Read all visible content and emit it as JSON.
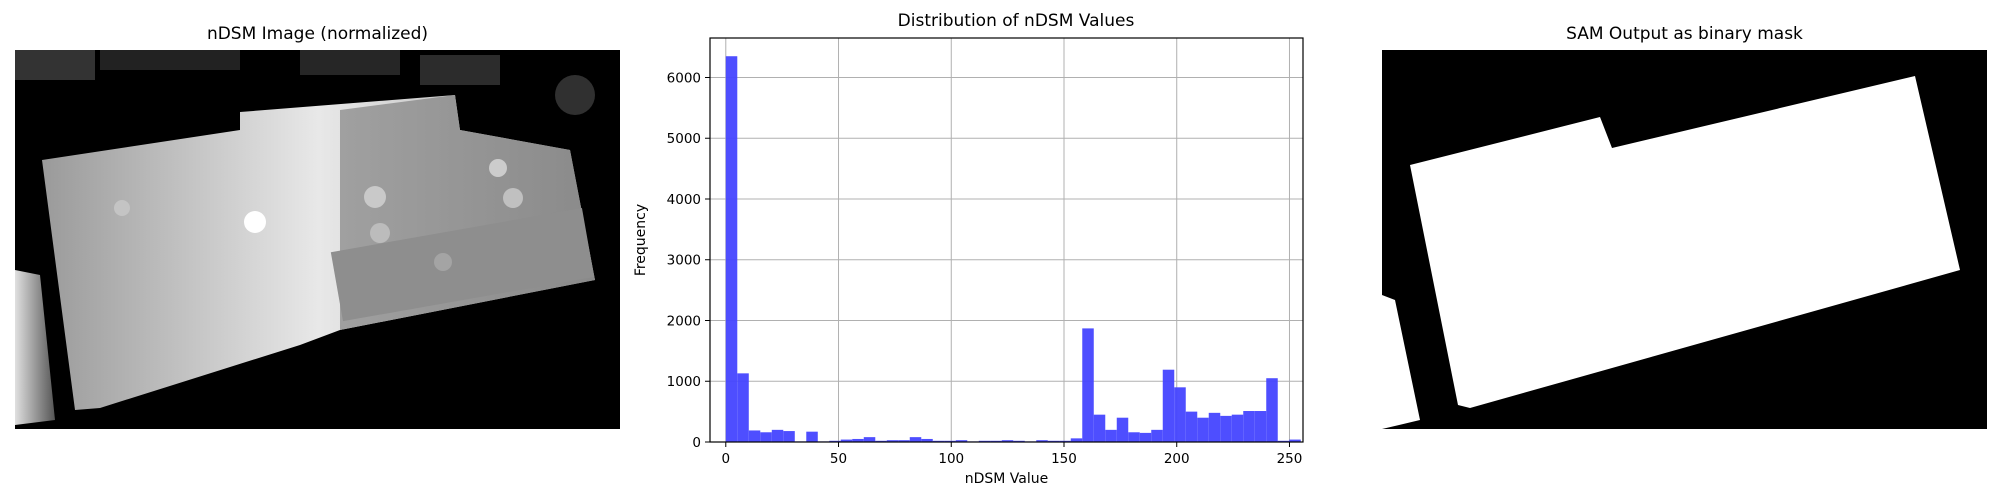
{
  "panels": {
    "left_title": "nDSM Image (normalized)",
    "right_title": "SAM Output as binary mask"
  },
  "chart_data": {
    "type": "bar",
    "title": "Distribution of nDSM Values",
    "xlabel": "nDSM Value",
    "ylabel": "Frequency",
    "xlim": [
      -7,
      256
    ],
    "ylim": [
      0,
      6650
    ],
    "xticks": [
      0,
      50,
      100,
      150,
      200,
      250
    ],
    "yticks": [
      0,
      1000,
      2000,
      3000,
      4000,
      5000,
      6000
    ],
    "grid": true,
    "bar_color": "#4444ff",
    "bin_width": 5.1,
    "bin_edges_start": 0,
    "values": [
      6350,
      1130,
      190,
      160,
      200,
      180,
      10,
      170,
      10,
      20,
      40,
      50,
      80,
      20,
      30,
      30,
      80,
      50,
      20,
      20,
      30,
      10,
      20,
      20,
      30,
      20,
      10,
      30,
      20,
      20,
      60,
      1870,
      450,
      200,
      400,
      160,
      150,
      200,
      1190,
      900,
      500,
      400,
      480,
      430,
      450,
      510,
      510,
      1050,
      20,
      40
    ]
  },
  "image_panels": {
    "left_bg": "#000000",
    "right_bg": "#000000",
    "mask_color": "#ffffff"
  }
}
